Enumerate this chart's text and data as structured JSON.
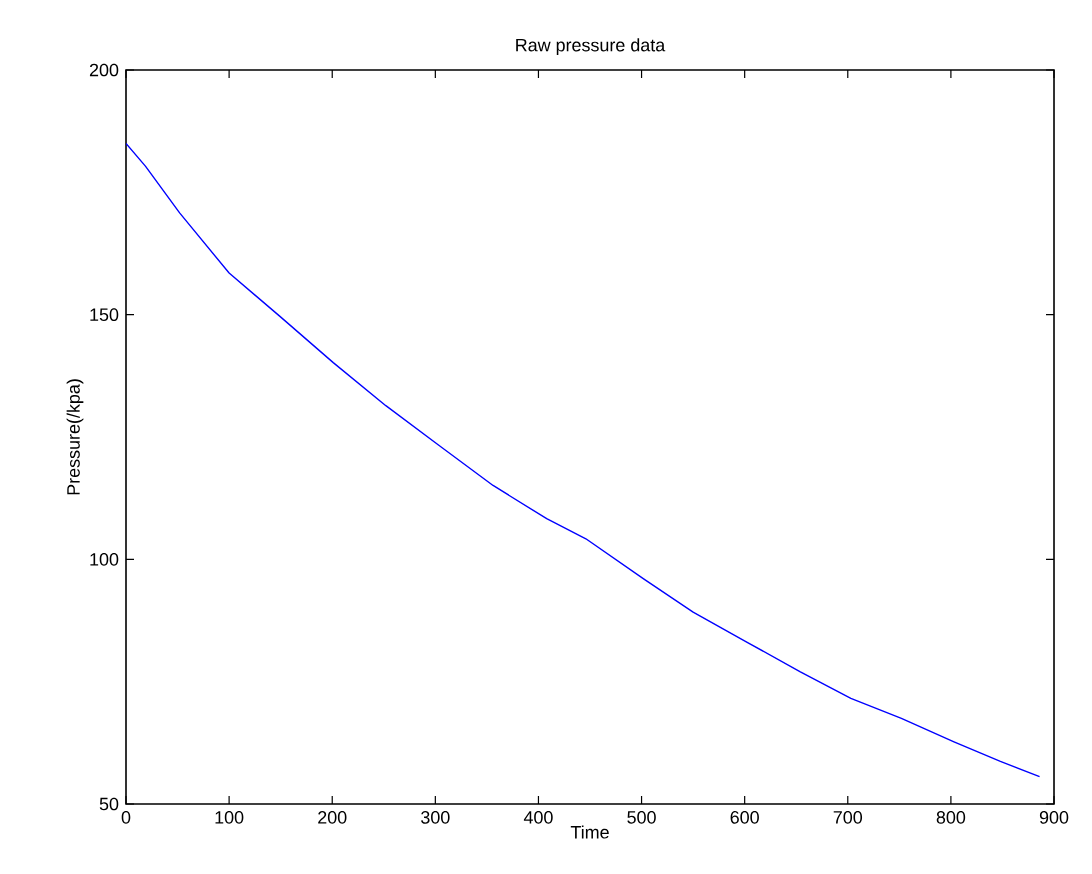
{
  "chart_data": {
    "type": "line",
    "title": "Raw pressure data",
    "xlabel": "Time",
    "ylabel": "Pressure(/kpa)",
    "xlim": [
      0,
      900
    ],
    "ylim": [
      50,
      200
    ],
    "xticks": [
      0,
      100,
      200,
      300,
      400,
      500,
      600,
      700,
      800,
      900
    ],
    "yticks": [
      50,
      100,
      150,
      200
    ],
    "series": [
      {
        "color": "#0000ff",
        "x": [
          0,
          19,
          52,
          100,
          149,
          201,
          252,
          304,
          356,
          408,
          446,
          502,
          550,
          602,
          654,
          703,
          752,
          803,
          848,
          886
        ],
        "values": [
          185,
          180.3,
          170.8,
          158.5,
          149.7,
          140.2,
          131.4,
          123.2,
          115.1,
          108.3,
          104.2,
          96,
          89.2,
          83.1,
          77,
          71.6,
          67.5,
          62.7,
          58.7,
          55.6
        ]
      }
    ]
  }
}
